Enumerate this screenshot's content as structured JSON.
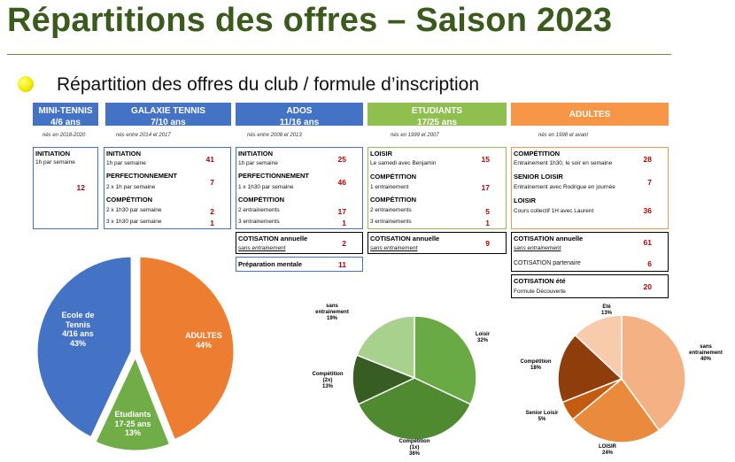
{
  "title": "Répartitions des offres – Saison 2023",
  "subtitle": "Répartition des offres du club / formule d’inscription",
  "colors": {
    "blue": "#4472c4",
    "green": "#8fbf4f",
    "orange": "#f79646",
    "dark_green": "#3b5b1d",
    "red": "#c00000"
  },
  "columns": {
    "mini": {
      "name": "MINI-TENNIS",
      "age": "4/6 ans",
      "birth": "nés en 2018-2020"
    },
    "galaxie": {
      "name": "GALAXIE TENNIS",
      "age": "7/10 ans",
      "birth": "nés entre 2014 et 2017"
    },
    "ados": {
      "name": "ADOS",
      "age": "11/16 ans",
      "birth": "nés entre 2008 et 2013"
    },
    "etudiants": {
      "name": "ETUDIANTS",
      "age": "17/25 ans",
      "birth": "nés en 1999 et 2007"
    },
    "adultes": {
      "name": "ADULTES",
      "birth": "nés en 1998 et avant"
    }
  },
  "mini_box": {
    "label": "INITIATION",
    "desc": "1h par semaine",
    "value": "12"
  },
  "galaxie_box": {
    "r1_label": "INITIATION",
    "r1_desc": "1h par semaine",
    "r1_value": "41",
    "r2_label": "PERFECTIONNEMENT",
    "r2_desc": "2 x 1h par semaine",
    "r2_value": "7",
    "r3_label": "COMPÉTITION",
    "r3_desc": "2 x 1h30 par semaine",
    "r3_value": "2",
    "r4_desc": "3 x 1h30 par semaine",
    "r4_value": "1"
  },
  "ados_box": {
    "r1_label": "INITIATION",
    "r1_desc": "1h par semaine",
    "r1_value": "25",
    "r2_label": "PERFECTIONNEMENT",
    "r2_desc": "1 x 1h30 par semaine",
    "r2_value": "46",
    "r3_label": "COMPÉTITION",
    "r3_desc": "2 entrainements",
    "r3_value": "17",
    "r4_desc": "3 entrainements",
    "r4_value": "1"
  },
  "ados_cotisation": {
    "label": "COTISATION annuelle",
    "desc": "sans entrainement",
    "value": "2"
  },
  "ados_prepa": {
    "label": "Préparation mentale",
    "value": "11"
  },
  "etu_box": {
    "r1_label": "LOISIR",
    "r1_desc": "Le samedi avec Benjamin",
    "r1_value": "15",
    "r2_label": "COMPÉTITION",
    "r2_desc": "1 entrainement",
    "r2_value": "17",
    "r3_label": "COMPÉTITION",
    "r3_desc": "2 entrainements",
    "r3_value": "5",
    "r4_desc": "3 entrainements",
    "r4_value": "1"
  },
  "etu_cotisation": {
    "label": "COTISATION annuelle",
    "desc": "sans entrainement",
    "value": "9"
  },
  "adu_box": {
    "r1_label": "COMPÉTITION",
    "r1_desc": "Entrainement 1h30, le soir en semaine",
    "r1_value": "28",
    "r2_label": "SENIOR LOISIR",
    "r2_desc": "Entrainement avec Rodrigue en journée",
    "r2_value": "7",
    "r3_label": "LOISIR",
    "r3_desc": "Cours collectif 1H avec Laurent",
    "r3_value": "36"
  },
  "adu_cotisation": {
    "label": "COTISATION annuelle",
    "desc": "sans entrainement",
    "value": "61",
    "label2": "COTISATION partenaire",
    "value2": "6"
  },
  "adu_ete": {
    "label": "COTISATION été",
    "desc": "Formule Découverte",
    "value": "20"
  },
  "chart_data": [
    {
      "type": "pie",
      "categories": [
        "Ecole de Tennis 4/16 ans",
        "ADULTES",
        "Etudiants 17-25 ans"
      ],
      "values": [
        43,
        44,
        13
      ],
      "labels": [
        [
          "Ecole de",
          "Tennis",
          "4/16 ans",
          "43%"
        ],
        [
          "ADULTES",
          "44%"
        ],
        [
          "Etudiants",
          "17-25 ans",
          "13%"
        ]
      ]
    },
    {
      "type": "pie",
      "categories": [
        "Loisir",
        "Compétition (1x)",
        "Compétition (2x)",
        "sans entrainement"
      ],
      "values": [
        32,
        36,
        13,
        19
      ],
      "labels": [
        [
          "Loisir",
          "32%"
        ],
        [
          "Compétition",
          "(1x)",
          "36%"
        ],
        [
          "Compétition",
          "(2x)",
          "13%"
        ],
        [
          "sans",
          "entrainement",
          "19%"
        ]
      ]
    },
    {
      "type": "pie",
      "categories": [
        "sans entrainement",
        "LOISIR",
        "Senior Loisir",
        "Compétition",
        "Eté"
      ],
      "values": [
        40,
        24,
        5,
        18,
        13
      ],
      "labels": [
        [
          "sans",
          "entrainement",
          "40%"
        ],
        [
          "LOISIR",
          "24%"
        ],
        [
          "Senior Loisir",
          "5%"
        ],
        [
          "Compétition",
          "18%"
        ],
        [
          "Eté",
          "13%"
        ]
      ]
    }
  ]
}
